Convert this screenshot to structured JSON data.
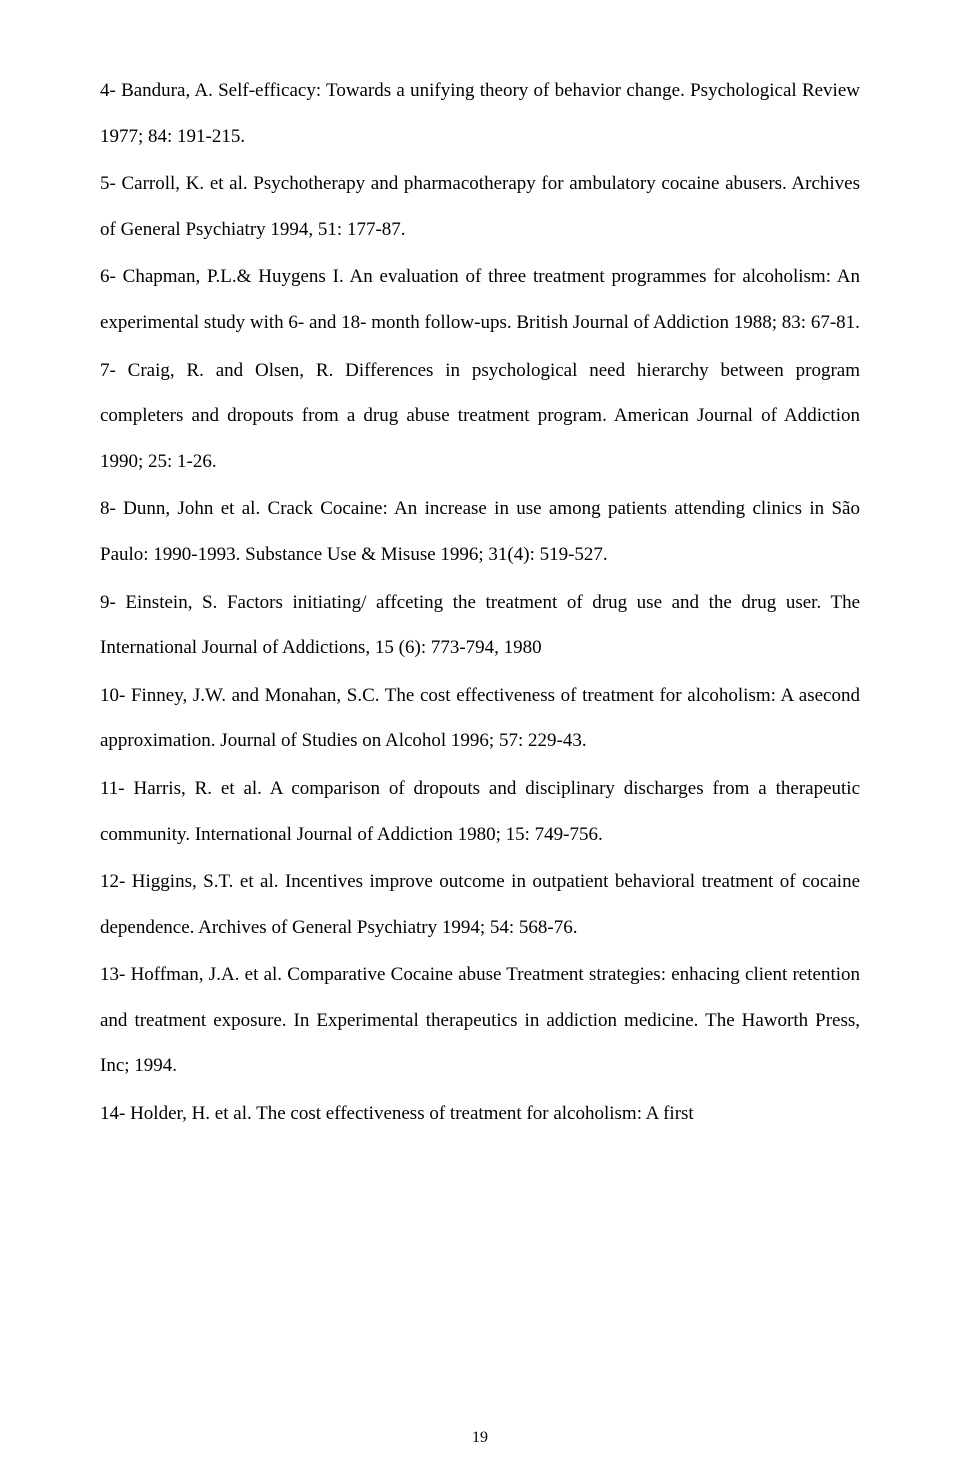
{
  "page": {
    "number": "19",
    "font_family": "Times New Roman",
    "font_size_pt": 12,
    "line_spacing": 2.0,
    "text_align": "justify",
    "text_color": "#000000",
    "background_color": "#ffffff"
  },
  "references": [
    {
      "text": "4- Bandura, A. Self-efficacy: Towards a unifying theory of behavior change. Psychological Review 1977; 84: 191-215."
    },
    {
      "text": "5- Carroll, K. et al. Psychotherapy and pharmacotherapy for ambulatory cocaine abusers. Archives of General Psychiatry 1994, 51: 177-87."
    },
    {
      "text": "6- Chapman, P.L.& Huygens I. An evaluation of three treatment programmes for alcoholism: An experimental study with 6- and 18- month follow-ups. British Journal of Addiction 1988; 83: 67-81."
    },
    {
      "text": "7- Craig, R. and Olsen, R. Differences in psychological need hierarchy between program completers and dropouts from a drug abuse treatment program. American Journal of Addiction 1990; 25: 1-26."
    },
    {
      "text": "8- Dunn, John et al. Crack Cocaine: An increase in use among patients attending clinics in São Paulo: 1990-1993. Substance Use & Misuse 1996; 31(4): 519-527."
    },
    {
      "text": "9- Einstein, S. Factors initiating/ affceting the treatment of drug use and the drug user. The International Journal of Addictions, 15 (6): 773-794, 1980"
    },
    {
      "text": "10- Finney, J.W. and Monahan, S.C. The cost effectiveness of treatment for alcoholism: A asecond approximation. Journal of Studies on Alcohol 1996; 57: 229-43."
    },
    {
      "text": "11- Harris, R. et al. A comparison of dropouts and disciplinary discharges from a therapeutic community. International Journal of Addiction 1980; 15: 749-756."
    },
    {
      "text": "12- Higgins, S.T. et al. Incentives improve outcome in outpatient behavioral treatment of cocaine dependence. Archives of General Psychiatry 1994; 54: 568-76."
    },
    {
      "text": "13- Hoffman, J.A. et al. Comparative Cocaine abuse Treatment strategies: enhacing client retention and treatment exposure. In  Experimental therapeutics in addiction medicine. The Haworth Press, Inc; 1994."
    },
    {
      "text": "14- Holder, H. et al. The cost effectiveness of treatment for alcoholism: A first"
    }
  ]
}
